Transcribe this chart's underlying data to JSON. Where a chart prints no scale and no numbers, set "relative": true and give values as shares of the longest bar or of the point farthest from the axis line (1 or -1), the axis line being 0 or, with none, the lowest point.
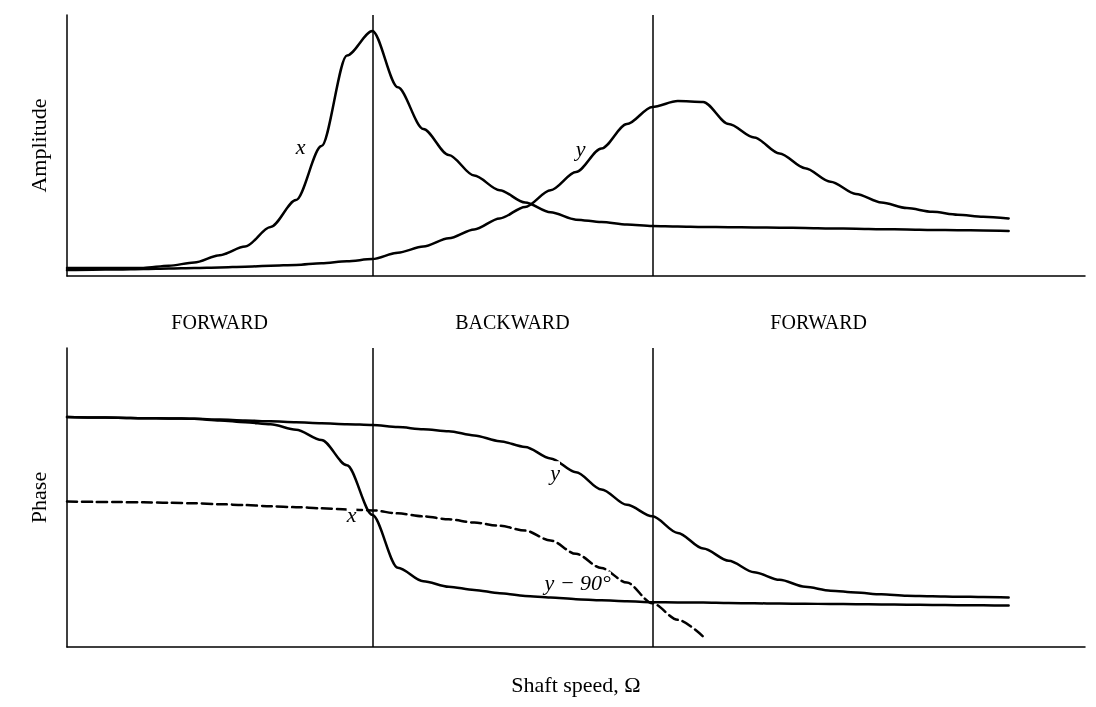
{
  "chart_data": [
    {
      "type": "line",
      "ylabel": "Amplitude",
      "relative": true,
      "grid": false,
      "legend": false,
      "marker": "none",
      "categories": [
        null,
        null,
        null,
        null,
        null,
        null,
        null,
        null,
        null,
        null,
        null,
        null,
        null,
        null,
        null,
        null,
        null,
        null,
        null,
        null,
        null,
        null,
        null,
        null,
        null,
        null,
        null,
        null,
        null,
        null,
        null,
        null,
        null,
        null,
        null,
        null,
        null,
        null,
        null,
        null,
        null
      ],
      "annotations": [
        "FORWARD",
        "BACKWARD",
        "FORWARD"
      ],
      "series": [
        {
          "name": "x",
          "color": "#000000",
          "values": [
            0.033,
            0.033,
            0.033,
            0.033,
            0.042,
            0.055,
            0.085,
            0.12,
            0.2,
            0.31,
            0.53,
            0.9,
            1.0,
            0.77,
            0.6,
            0.494,
            0.41,
            0.35,
            0.3,
            0.26,
            0.23,
            0.22,
            0.21,
            0.204,
            0.202,
            0.2,
            0.199,
            0.198,
            0.197,
            0.196,
            0.194,
            0.193,
            0.191,
            0.19,
            0.188,
            0.187,
            0.186,
            0.184,
            null,
            null,
            null
          ]
        },
        {
          "name": "y",
          "color": "#000000",
          "values": [
            0.024,
            0.026,
            0.027,
            0.029,
            0.031,
            0.033,
            0.035,
            0.038,
            0.042,
            0.045,
            0.052,
            0.06,
            0.069,
            0.095,
            0.12,
            0.154,
            0.19,
            0.235,
            0.282,
            0.35,
            0.424,
            0.52,
            0.62,
            0.69,
            0.714,
            0.71,
            0.62,
            0.565,
            0.5,
            0.44,
            0.385,
            0.335,
            0.3,
            0.277,
            0.262,
            0.25,
            0.242,
            0.235,
            null,
            null,
            null
          ]
        }
      ]
    },
    {
      "type": "line",
      "ylabel": "Phase",
      "xlabel": "Shaft speed, Ω",
      "relative": true,
      "grid": false,
      "legend": false,
      "marker": "none",
      "categories": [
        null,
        null,
        null,
        null,
        null,
        null,
        null,
        null,
        null,
        null,
        null,
        null,
        null,
        null,
        null,
        null,
        null,
        null,
        null,
        null,
        null,
        null,
        null,
        null,
        null,
        null,
        null,
        null,
        null,
        null,
        null,
        null,
        null,
        null,
        null,
        null,
        null,
        null,
        null,
        null,
        null
      ],
      "series": [
        {
          "name": "x",
          "color": "#000000",
          "values": [
            1.0,
            0.998,
            0.997,
            0.995,
            0.994,
            0.992,
            0.985,
            0.977,
            0.968,
            0.945,
            0.9,
            0.79,
            0.574,
            0.345,
            0.286,
            0.262,
            0.248,
            0.234,
            0.222,
            0.215,
            0.208,
            0.203,
            0.199,
            0.195,
            0.194,
            0.193,
            0.191,
            0.19,
            0.189,
            0.188,
            0.187,
            0.186,
            0.185,
            0.184,
            0.183,
            0.182,
            0.181,
            0.18,
            null,
            null,
            null
          ]
        },
        {
          "name": "y",
          "color": "#000000",
          "values": [
            1.0,
            0.998,
            0.997,
            0.995,
            0.994,
            0.992,
            0.989,
            0.985,
            0.981,
            0.977,
            0.973,
            0.969,
            0.965,
            0.956,
            0.947,
            0.938,
            0.92,
            0.895,
            0.87,
            0.82,
            0.76,
            0.685,
            0.618,
            0.568,
            0.496,
            0.428,
            0.375,
            0.325,
            0.292,
            0.262,
            0.245,
            0.237,
            0.229,
            0.223,
            0.221,
            0.219,
            0.217,
            0.215,
            null,
            null,
            null
          ]
        },
        {
          "name": "y − 90°",
          "color": "#000000",
          "line_style": "dashed",
          "values": [
            0.633,
            0.631,
            0.63,
            0.629,
            0.627,
            0.625,
            0.621,
            0.617,
            0.612,
            0.608,
            0.603,
            0.598,
            0.594,
            0.581,
            0.568,
            0.555,
            0.541,
            0.527,
            0.506,
            0.463,
            0.405,
            0.343,
            0.28,
            0.19,
            0.118,
            0.045,
            null,
            null,
            null,
            null,
            null,
            null,
            null,
            null,
            null,
            null,
            null,
            null,
            null,
            null,
            null
          ]
        }
      ]
    }
  ]
}
